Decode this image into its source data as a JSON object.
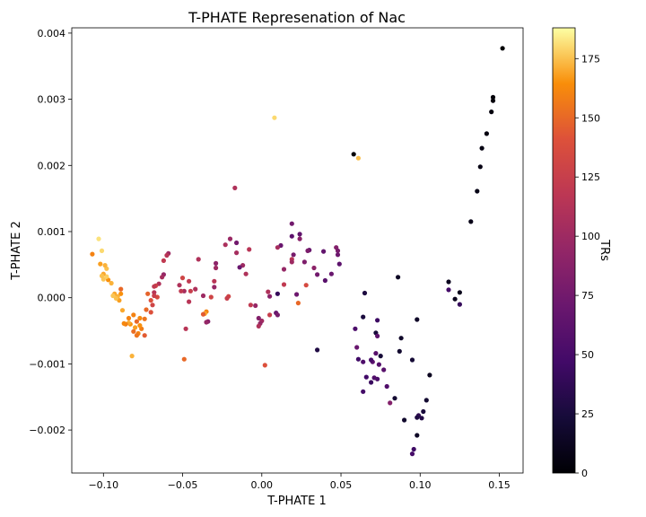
{
  "chart_data": {
    "type": "scatter",
    "title": "T-PHATE Represenation of Nac",
    "xlabel": "T-PHATE 1",
    "ylabel": "T-PHATE 2",
    "xlim": [
      -0.12,
      0.165
    ],
    "ylim": [
      -0.00265,
      0.00408
    ],
    "xticks": [
      -0.1,
      -0.05,
      0.0,
      0.05,
      0.1,
      0.15
    ],
    "xtick_labels": [
      "−0.10",
      "−0.05",
      "0.00",
      "0.05",
      "0.10",
      "0.15"
    ],
    "yticks": [
      -0.002,
      -0.001,
      0.0,
      0.001,
      0.002,
      0.003,
      0.004
    ],
    "ytick_labels": [
      "−0.002",
      "−0.001",
      "0.000",
      "0.001",
      "0.002",
      "0.003",
      "0.004"
    ],
    "grid": false,
    "colormap": "inferno",
    "colorbar": {
      "label": "TRs",
      "range": [
        0,
        188
      ],
      "ticks": [
        0,
        25,
        50,
        75,
        100,
        125,
        150,
        175
      ],
      "tick_labels": [
        "0",
        "25",
        "50",
        "75",
        "100",
        "125",
        "150",
        "175"
      ]
    },
    "points": [
      {
        "x": 0.152,
        "y": 0.00377,
        "c": 0
      },
      {
        "x": 0.146,
        "y": 0.00303,
        "c": 2
      },
      {
        "x": 0.146,
        "y": 0.00298,
        "c": 3
      },
      {
        "x": 0.145,
        "y": 0.00281,
        "c": 4
      },
      {
        "x": 0.142,
        "y": 0.00248,
        "c": 5
      },
      {
        "x": 0.139,
        "y": 0.00226,
        "c": 6
      },
      {
        "x": 0.138,
        "y": 0.00198,
        "c": 7
      },
      {
        "x": 0.136,
        "y": 0.00161,
        "c": 8
      },
      {
        "x": 0.132,
        "y": 0.00115,
        "c": 9
      },
      {
        "x": 0.125,
        "y": 8e-05,
        "c": 10
      },
      {
        "x": 0.122,
        "y": -2e-05,
        "c": 11
      },
      {
        "x": 0.118,
        "y": 0.00024,
        "c": 12
      },
      {
        "x": 0.125,
        "y": -0.0001,
        "c": 40
      },
      {
        "x": 0.118,
        "y": 0.00012,
        "c": 48
      },
      {
        "x": 0.106,
        "y": -0.00117,
        "c": 13
      },
      {
        "x": 0.104,
        "y": -0.00155,
        "c": 20
      },
      {
        "x": 0.102,
        "y": -0.00172,
        "c": 25
      },
      {
        "x": 0.101,
        "y": -0.00182,
        "c": 30
      },
      {
        "x": 0.099,
        "y": -0.00178,
        "c": 35
      },
      {
        "x": 0.098,
        "y": -0.00181,
        "c": 28
      },
      {
        "x": 0.098,
        "y": -0.00208,
        "c": 15
      },
      {
        "x": 0.096,
        "y": -0.00229,
        "c": 45
      },
      {
        "x": 0.095,
        "y": -0.00236,
        "c": 50
      },
      {
        "x": 0.09,
        "y": -0.00185,
        "c": 18
      },
      {
        "x": 0.098,
        "y": -0.00033,
        "c": 16
      },
      {
        "x": 0.095,
        "y": -0.00094,
        "c": 22
      },
      {
        "x": 0.088,
        "y": -0.00061,
        "c": 17
      },
      {
        "x": 0.087,
        "y": -0.00081,
        "c": 19
      },
      {
        "x": 0.086,
        "y": 0.00031,
        "c": 14
      },
      {
        "x": 0.084,
        "y": -0.00152,
        "c": 21
      },
      {
        "x": 0.081,
        "y": -0.00159,
        "c": 85
      },
      {
        "x": 0.079,
        "y": -0.00134,
        "c": 55
      },
      {
        "x": 0.077,
        "y": -0.00109,
        "c": 60
      },
      {
        "x": 0.075,
        "y": -0.00088,
        "c": 23
      },
      {
        "x": 0.072,
        "y": -0.00084,
        "c": 60
      },
      {
        "x": 0.074,
        "y": -0.00101,
        "c": 58
      },
      {
        "x": 0.073,
        "y": -0.00123,
        "c": 52
      },
      {
        "x": 0.071,
        "y": -0.00121,
        "c": 56
      },
      {
        "x": 0.07,
        "y": -0.00097,
        "c": 62
      },
      {
        "x": 0.069,
        "y": -0.00094,
        "c": 50
      },
      {
        "x": 0.072,
        "y": -0.00053,
        "c": 24
      },
      {
        "x": 0.073,
        "y": -0.00058,
        "c": 63
      },
      {
        "x": 0.073,
        "y": -0.00034,
        "c": 44
      },
      {
        "x": 0.069,
        "y": -0.00128,
        "c": 42
      },
      {
        "x": 0.066,
        "y": -0.0012,
        "c": 47
      },
      {
        "x": 0.064,
        "y": -0.00142,
        "c": 48
      },
      {
        "x": 0.064,
        "y": -0.00097,
        "c": 54
      },
      {
        "x": 0.064,
        "y": -0.00029,
        "c": 26
      },
      {
        "x": 0.065,
        "y": 7e-05,
        "c": 27
      },
      {
        "x": 0.061,
        "y": -0.00093,
        "c": 46
      },
      {
        "x": 0.059,
        "y": -0.00047,
        "c": 53
      },
      {
        "x": 0.06,
        "y": -0.00075,
        "c": 70
      },
      {
        "x": 0.058,
        "y": 0.00217,
        "c": 1
      },
      {
        "x": 0.061,
        "y": 0.00211,
        "c": 175
      },
      {
        "x": 0.035,
        "y": -0.00079,
        "c": 29
      },
      {
        "x": 0.008,
        "y": 0.00272,
        "c": 180
      },
      {
        "x": 0.049,
        "y": 0.00051,
        "c": 62
      },
      {
        "x": 0.047,
        "y": 0.00076,
        "c": 85
      },
      {
        "x": 0.048,
        "y": 0.00071,
        "c": 78
      },
      {
        "x": 0.048,
        "y": 0.00065,
        "c": 72
      },
      {
        "x": 0.044,
        "y": 0.00036,
        "c": 70
      },
      {
        "x": 0.04,
        "y": 0.00026,
        "c": 60
      },
      {
        "x": 0.039,
        "y": 0.0007,
        "c": 66
      },
      {
        "x": 0.035,
        "y": 0.00035,
        "c": 75
      },
      {
        "x": 0.033,
        "y": 0.00045,
        "c": 90
      },
      {
        "x": 0.03,
        "y": 0.00072,
        "c": 68
      },
      {
        "x": 0.029,
        "y": 0.00071,
        "c": 80
      },
      {
        "x": 0.028,
        "y": 0.00019,
        "c": 135
      },
      {
        "x": 0.027,
        "y": 0.00054,
        "c": 82
      },
      {
        "x": 0.024,
        "y": 0.00089,
        "c": 88
      },
      {
        "x": 0.024,
        "y": 0.00096,
        "c": 65
      },
      {
        "x": 0.022,
        "y": 5e-05,
        "c": 72
      },
      {
        "x": 0.023,
        "y": -8e-05,
        "c": 150
      },
      {
        "x": 0.019,
        "y": 0.00112,
        "c": 75
      },
      {
        "x": 0.019,
        "y": 0.00093,
        "c": 62
      },
      {
        "x": 0.02,
        "y": 0.00065,
        "c": 78
      },
      {
        "x": 0.019,
        "y": 0.00058,
        "c": 115
      },
      {
        "x": 0.019,
        "y": 0.00054,
        "c": 100
      },
      {
        "x": 0.014,
        "y": 0.00043,
        "c": 95
      },
      {
        "x": 0.014,
        "y": 0.0002,
        "c": 120
      },
      {
        "x": 0.012,
        "y": 0.00079,
        "c": 70
      },
      {
        "x": 0.01,
        "y": 0.00076,
        "c": 105
      },
      {
        "x": 0.01,
        "y": 6e-05,
        "c": 40
      },
      {
        "x": 0.009,
        "y": -0.00023,
        "c": 68
      },
      {
        "x": 0.01,
        "y": -0.00026,
        "c": 78
      },
      {
        "x": 0.005,
        "y": -0.00026,
        "c": 125
      },
      {
        "x": 0.004,
        "y": 9e-05,
        "c": 110
      },
      {
        "x": 0.005,
        "y": 2e-05,
        "c": 88
      },
      {
        "x": 0.002,
        "y": -0.00102,
        "c": 140
      },
      {
        "x": 0.0,
        "y": -0.00035,
        "c": 102
      },
      {
        "x": -0.001,
        "y": -0.00039,
        "c": 95
      },
      {
        "x": -0.002,
        "y": -0.00043,
        "c": 110
      },
      {
        "x": -0.002,
        "y": -0.00031,
        "c": 85
      },
      {
        "x": -0.004,
        "y": -0.00012,
        "c": 96
      },
      {
        "x": -0.007,
        "y": -0.00011,
        "c": 120
      },
      {
        "x": -0.008,
        "y": 0.00073,
        "c": 115
      },
      {
        "x": -0.01,
        "y": 0.00036,
        "c": 110
      },
      {
        "x": -0.012,
        "y": 0.00049,
        "c": 100
      },
      {
        "x": -0.014,
        "y": 0.00046,
        "c": 70
      },
      {
        "x": -0.016,
        "y": 0.00068,
        "c": 105
      },
      {
        "x": -0.016,
        "y": 0.00083,
        "c": 75
      },
      {
        "x": -0.017,
        "y": 0.00166,
        "c": 110
      },
      {
        "x": -0.02,
        "y": 0.00089,
        "c": 98
      },
      {
        "x": -0.021,
        "y": 2e-05,
        "c": 130
      },
      {
        "x": -0.022,
        "y": -1e-05,
        "c": 125
      },
      {
        "x": -0.023,
        "y": 0.0008,
        "c": 108
      },
      {
        "x": -0.029,
        "y": 0.00052,
        "c": 90
      },
      {
        "x": -0.029,
        "y": 0.00045,
        "c": 100
      },
      {
        "x": -0.03,
        "y": 0.00025,
        "c": 115
      },
      {
        "x": -0.03,
        "y": 0.00016,
        "c": 95
      },
      {
        "x": -0.032,
        "y": 1e-05,
        "c": 130
      },
      {
        "x": -0.034,
        "y": -0.00036,
        "c": 85
      },
      {
        "x": -0.035,
        "y": -0.00037,
        "c": 95
      },
      {
        "x": -0.035,
        "y": -0.00021,
        "c": 160
      },
      {
        "x": -0.036,
        "y": -0.00024,
        "c": 170
      },
      {
        "x": -0.037,
        "y": -0.00025,
        "c": 145
      },
      {
        "x": -0.037,
        "y": 3e-05,
        "c": 100
      },
      {
        "x": -0.04,
        "y": 0.00058,
        "c": 110
      },
      {
        "x": -0.042,
        "y": 0.00013,
        "c": 110
      },
      {
        "x": -0.045,
        "y": 0.0001,
        "c": 125
      },
      {
        "x": -0.046,
        "y": -6e-05,
        "c": 115
      },
      {
        "x": -0.046,
        "y": 0.00025,
        "c": 120
      },
      {
        "x": -0.048,
        "y": -0.00047,
        "c": 115
      },
      {
        "x": -0.049,
        "y": 0.0001,
        "c": 105
      },
      {
        "x": -0.049,
        "y": -0.00093,
        "c": 150
      },
      {
        "x": -0.05,
        "y": 0.0003,
        "c": 130
      },
      {
        "x": -0.051,
        "y": 0.0001,
        "c": 120
      },
      {
        "x": -0.052,
        "y": 0.00019,
        "c": 110
      },
      {
        "x": -0.059,
        "y": 0.00067,
        "c": 100
      },
      {
        "x": -0.06,
        "y": 0.00064,
        "c": 115
      },
      {
        "x": -0.062,
        "y": 0.00035,
        "c": 95
      },
      {
        "x": -0.062,
        "y": 0.00056,
        "c": 120
      },
      {
        "x": -0.063,
        "y": 0.00031,
        "c": 105
      },
      {
        "x": -0.065,
        "y": 0.00021,
        "c": 110
      },
      {
        "x": -0.066,
        "y": 1e-05,
        "c": 135
      },
      {
        "x": -0.067,
        "y": 0.00018,
        "c": 130
      },
      {
        "x": -0.068,
        "y": 0.00017,
        "c": 120
      },
      {
        "x": -0.068,
        "y": 8e-05,
        "c": 115
      },
      {
        "x": -0.068,
        "y": 3e-05,
        "c": 125
      },
      {
        "x": -0.069,
        "y": -0.00011,
        "c": 130
      },
      {
        "x": -0.07,
        "y": -4e-05,
        "c": 140
      },
      {
        "x": -0.07,
        "y": -0.00022,
        "c": 140
      },
      {
        "x": -0.072,
        "y": 6e-05,
        "c": 148
      },
      {
        "x": -0.073,
        "y": -0.00018,
        "c": 150
      },
      {
        "x": -0.074,
        "y": -0.00032,
        "c": 155
      },
      {
        "x": -0.074,
        "y": -0.00057,
        "c": 145
      },
      {
        "x": -0.076,
        "y": -0.00047,
        "c": 158
      },
      {
        "x": -0.077,
        "y": -0.00042,
        "c": 165
      },
      {
        "x": -0.077,
        "y": -0.00031,
        "c": 162
      },
      {
        "x": -0.078,
        "y": -0.00054,
        "c": 160
      },
      {
        "x": -0.079,
        "y": -0.00057,
        "c": 155
      },
      {
        "x": -0.079,
        "y": -0.00036,
        "c": 150
      },
      {
        "x": -0.08,
        "y": -0.00045,
        "c": 168
      },
      {
        "x": -0.081,
        "y": -0.00051,
        "c": 152
      },
      {
        "x": -0.081,
        "y": -0.00026,
        "c": 160
      },
      {
        "x": -0.082,
        "y": -0.00088,
        "c": 172
      },
      {
        "x": -0.083,
        "y": -0.0004,
        "c": 165
      },
      {
        "x": -0.084,
        "y": -0.00031,
        "c": 160
      },
      {
        "x": -0.084,
        "y": -0.00038,
        "c": 170
      },
      {
        "x": -0.086,
        "y": -0.0004,
        "c": 158
      },
      {
        "x": -0.087,
        "y": -0.00039,
        "c": 162
      },
      {
        "x": -0.088,
        "y": -0.00019,
        "c": 170
      },
      {
        "x": -0.089,
        "y": 6e-05,
        "c": 165
      },
      {
        "x": -0.089,
        "y": 0.00013,
        "c": 150
      },
      {
        "x": -0.09,
        "y": -4e-05,
        "c": 168
      },
      {
        "x": -0.091,
        "y": 2e-05,
        "c": 172
      },
      {
        "x": -0.092,
        "y": -1e-05,
        "c": 175
      },
      {
        "x": -0.093,
        "y": 6e-05,
        "c": 170
      },
      {
        "x": -0.094,
        "y": 3e-05,
        "c": 176
      },
      {
        "x": -0.095,
        "y": 0.00022,
        "c": 172
      },
      {
        "x": -0.097,
        "y": 0.00027,
        "c": 165
      },
      {
        "x": -0.098,
        "y": 0.00032,
        "c": 178
      },
      {
        "x": -0.098,
        "y": 0.00044,
        "c": 175
      },
      {
        "x": -0.099,
        "y": 0.00049,
        "c": 172
      },
      {
        "x": -0.1,
        "y": 0.00028,
        "c": 176
      },
      {
        "x": -0.1,
        "y": 0.00036,
        "c": 170
      },
      {
        "x": -0.101,
        "y": 0.00033,
        "c": 175
      },
      {
        "x": -0.101,
        "y": 0.00071,
        "c": 180
      },
      {
        "x": -0.102,
        "y": 0.00051,
        "c": 168
      },
      {
        "x": -0.103,
        "y": 0.00089,
        "c": 182
      },
      {
        "x": -0.107,
        "y": 0.00066,
        "c": 160
      }
    ]
  }
}
